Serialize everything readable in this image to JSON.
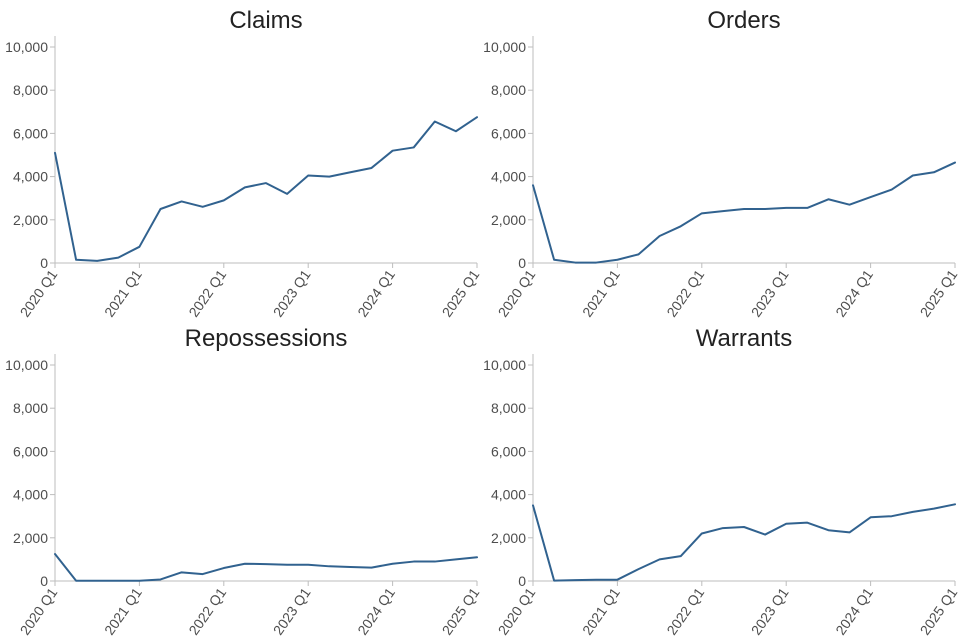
{
  "chart_data": [
    {
      "type": "line",
      "title": "Claims",
      "xlabel": "",
      "ylabel": "",
      "ylim": [
        0,
        10000
      ],
      "yticks": [
        0,
        2000,
        4000,
        6000,
        8000,
        10000
      ],
      "ytick_labels": [
        "0",
        "2,000",
        "4,000",
        "6,000",
        "8,000",
        "10,000"
      ],
      "x": [
        "2020 Q1",
        "2020 Q2",
        "2020 Q3",
        "2020 Q4",
        "2021 Q1",
        "2021 Q2",
        "2021 Q3",
        "2021 Q4",
        "2022 Q1",
        "2022 Q2",
        "2022 Q3",
        "2022 Q4",
        "2023 Q1",
        "2023 Q2",
        "2023 Q3",
        "2023 Q4",
        "2024 Q1",
        "2024 Q2",
        "2024 Q3",
        "2024 Q4",
        "2025 Q1"
      ],
      "xtick_labels": [
        "2020 Q1",
        "2021 Q1",
        "2022 Q1",
        "2023 Q1",
        "2024 Q1",
        "2025 Q1"
      ],
      "series": [
        {
          "values": [
            5100,
            150,
            100,
            250,
            750,
            2500,
            2850,
            2600,
            2900,
            3500,
            3700,
            3200,
            4050,
            4000,
            4200,
            4400,
            5200,
            5350,
            6550,
            6100,
            6750
          ]
        }
      ],
      "grid": false,
      "line_color": "#31628f"
    },
    {
      "type": "line",
      "title": "Orders",
      "xlabel": "",
      "ylabel": "",
      "ylim": [
        0,
        10000
      ],
      "yticks": [
        0,
        2000,
        4000,
        6000,
        8000,
        10000
      ],
      "ytick_labels": [
        "0",
        "2,000",
        "4,000",
        "6,000",
        "8,000",
        "10,000"
      ],
      "x": [
        "2020 Q1",
        "2020 Q2",
        "2020 Q3",
        "2020 Q4",
        "2021 Q1",
        "2021 Q2",
        "2021 Q3",
        "2021 Q4",
        "2022 Q1",
        "2022 Q2",
        "2022 Q3",
        "2022 Q4",
        "2023 Q1",
        "2023 Q2",
        "2023 Q3",
        "2023 Q4",
        "2024 Q1",
        "2024 Q2",
        "2024 Q3",
        "2024 Q4",
        "2025 Q1"
      ],
      "xtick_labels": [
        "2020 Q1",
        "2021 Q1",
        "2022 Q1",
        "2023 Q1",
        "2024 Q1",
        "2025 Q1"
      ],
      "series": [
        {
          "values": [
            3600,
            150,
            20,
            20,
            150,
            400,
            1250,
            1700,
            2300,
            2400,
            2500,
            2500,
            2550,
            2550,
            2950,
            2700,
            3050,
            3400,
            4050,
            4200,
            4650
          ]
        }
      ],
      "grid": false,
      "line_color": "#31628f"
    },
    {
      "type": "line",
      "title": "Repossessions",
      "xlabel": "",
      "ylabel": "",
      "ylim": [
        0,
        10000
      ],
      "yticks": [
        0,
        2000,
        4000,
        6000,
        8000,
        10000
      ],
      "ytick_labels": [
        "0",
        "2,000",
        "4,000",
        "6,000",
        "8,000",
        "10,000"
      ],
      "x": [
        "2020 Q1",
        "2020 Q2",
        "2020 Q3",
        "2020 Q4",
        "2021 Q1",
        "2021 Q2",
        "2021 Q3",
        "2021 Q4",
        "2022 Q1",
        "2022 Q2",
        "2022 Q3",
        "2022 Q4",
        "2023 Q1",
        "2023 Q2",
        "2023 Q3",
        "2023 Q4",
        "2024 Q1",
        "2024 Q2",
        "2024 Q3",
        "2024 Q4",
        "2025 Q1"
      ],
      "xtick_labels": [
        "2020 Q1",
        "2021 Q1",
        "2022 Q1",
        "2023 Q1",
        "2024 Q1",
        "2025 Q1"
      ],
      "series": [
        {
          "values": [
            1250,
            10,
            10,
            10,
            10,
            70,
            400,
            320,
            600,
            800,
            780,
            750,
            750,
            680,
            650,
            620,
            800,
            900,
            900,
            1000,
            1100
          ]
        }
      ],
      "grid": false,
      "line_color": "#31628f"
    },
    {
      "type": "line",
      "title": "Warrants",
      "xlabel": "",
      "ylabel": "",
      "ylim": [
        0,
        10000
      ],
      "yticks": [
        0,
        2000,
        4000,
        6000,
        8000,
        10000
      ],
      "ytick_labels": [
        "0",
        "2,000",
        "4,000",
        "6,000",
        "8,000",
        "10,000"
      ],
      "x": [
        "2020 Q1",
        "2020 Q2",
        "2020 Q3",
        "2020 Q4",
        "2021 Q1",
        "2021 Q2",
        "2021 Q3",
        "2021 Q4",
        "2022 Q1",
        "2022 Q2",
        "2022 Q3",
        "2022 Q4",
        "2023 Q1",
        "2023 Q2",
        "2023 Q3",
        "2023 Q4",
        "2024 Q1",
        "2024 Q2",
        "2024 Q3",
        "2024 Q4",
        "2025 Q1"
      ],
      "xtick_labels": [
        "2020 Q1",
        "2021 Q1",
        "2022 Q1",
        "2023 Q1",
        "2024 Q1",
        "2025 Q1"
      ],
      "series": [
        {
          "values": [
            3500,
            20,
            40,
            60,
            60,
            550,
            1000,
            1150,
            2200,
            2450,
            2500,
            2150,
            2650,
            2700,
            2350,
            2250,
            2950,
            3000,
            3200,
            3350,
            3550
          ]
        }
      ],
      "grid": false,
      "line_color": "#31628f"
    }
  ]
}
